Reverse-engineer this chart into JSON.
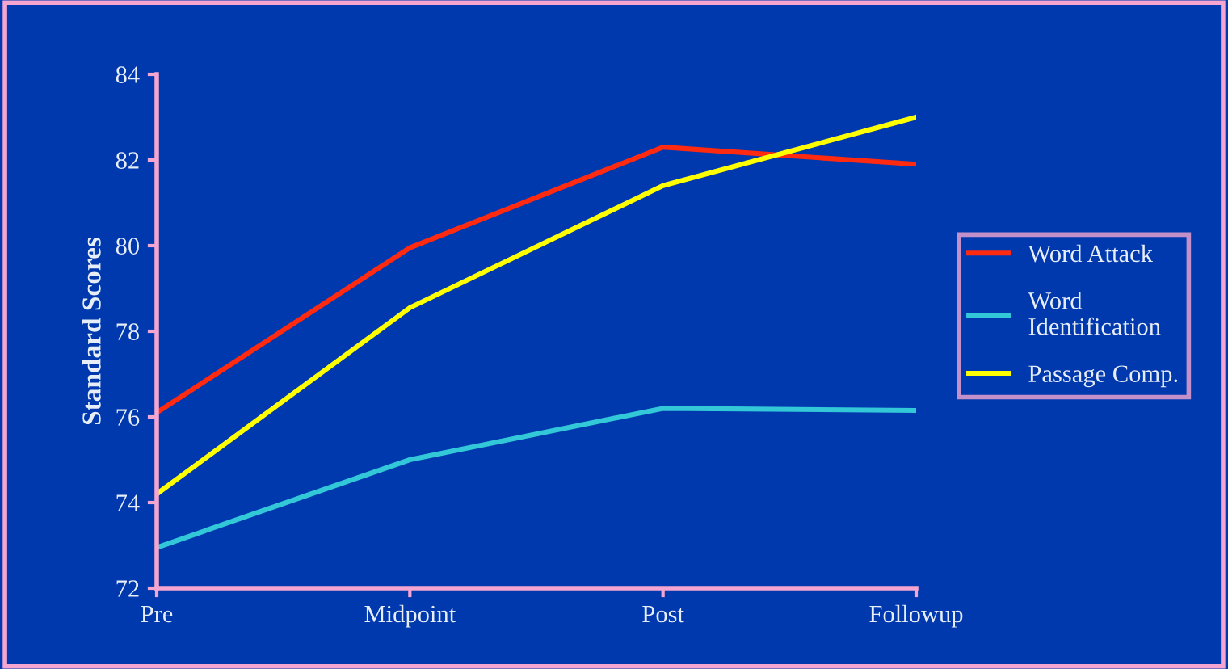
{
  "chart_data": {
    "type": "line",
    "ylabel": "Standard Scores",
    "categories": [
      "Pre",
      "Midpoint",
      "Post",
      "Followup"
    ],
    "series": [
      {
        "name": "Word Attack",
        "color": "#ff2a10",
        "values": [
          76.1,
          79.95,
          82.3,
          81.9
        ]
      },
      {
        "name": "Word\nIdentification",
        "color": "#33c8d8",
        "values": [
          72.95,
          75.0,
          76.2,
          76.15
        ]
      },
      {
        "name": "Passage Comp.",
        "color": "#ffff00",
        "values": [
          74.2,
          78.55,
          81.4,
          83.0
        ]
      }
    ],
    "ylim": [
      72,
      84
    ],
    "yticks": [
      72,
      74,
      76,
      78,
      80,
      82,
      84
    ],
    "grid": false,
    "legend": "right",
    "marker": "none",
    "line_style": "solid"
  }
}
